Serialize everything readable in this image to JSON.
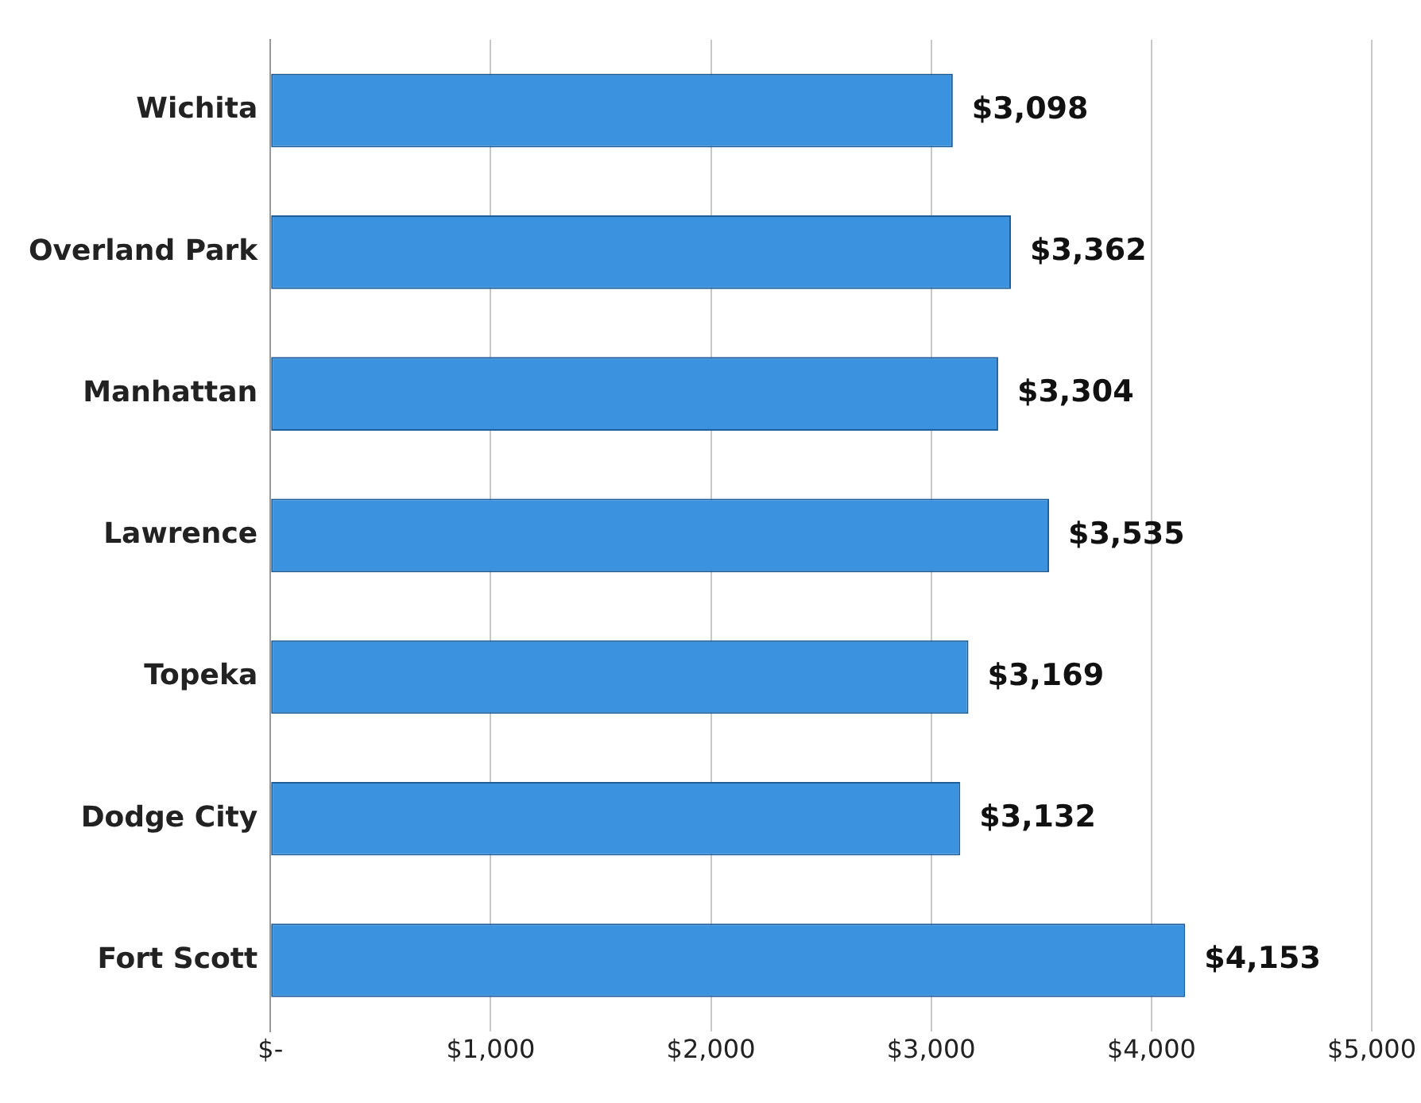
{
  "chart_data": {
    "type": "bar",
    "orientation": "horizontal",
    "categories": [
      "Wichita",
      "Overland Park",
      "Manhattan",
      "Lawrence",
      "Topeka",
      "Dodge City",
      "Fort Scott"
    ],
    "values": [
      3098,
      3362,
      3304,
      3535,
      3169,
      3132,
      4153
    ],
    "value_labels": [
      "$3,098",
      "$3,362",
      "$3,304",
      "$3,535",
      "$3,169",
      "$3,132",
      "$4,153"
    ],
    "color": "#3b93e0",
    "xlim": [
      0,
      5000
    ],
    "xticks": [
      {
        "value": 0,
        "label": "$-"
      },
      {
        "value": 1000,
        "label": "$1,000"
      },
      {
        "value": 2000,
        "label": "$2,000"
      },
      {
        "value": 3000,
        "label": "$3,000"
      },
      {
        "value": 4000,
        "label": "$4,000"
      },
      {
        "value": 5000,
        "label": "$5,000"
      }
    ],
    "grid": "x",
    "legend": false
  }
}
